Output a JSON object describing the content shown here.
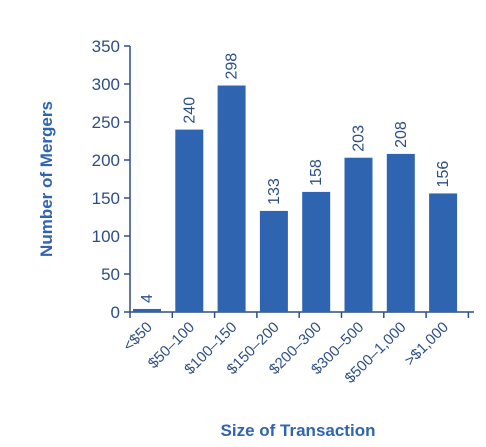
{
  "chart_data": {
    "type": "bar",
    "title": "",
    "xlabel": "Size of Transaction",
    "ylabel": "Number of Mergers",
    "categories": [
      "<$50",
      "$50–100",
      "$100–150",
      "$150–200",
      "$200–300",
      "$300–500",
      "$500–1,000",
      ">$1,000"
    ],
    "values": [
      4,
      240,
      298,
      133,
      158,
      203,
      208,
      156
    ],
    "ylim": [
      0,
      350
    ],
    "yticks": [
      0,
      50,
      100,
      150,
      200,
      250,
      300,
      350
    ],
    "grid": false,
    "data_labels": true,
    "colors": {
      "bar": "#2e64b0",
      "axis": "#2d4f86",
      "text": "#2d4f86"
    }
  }
}
